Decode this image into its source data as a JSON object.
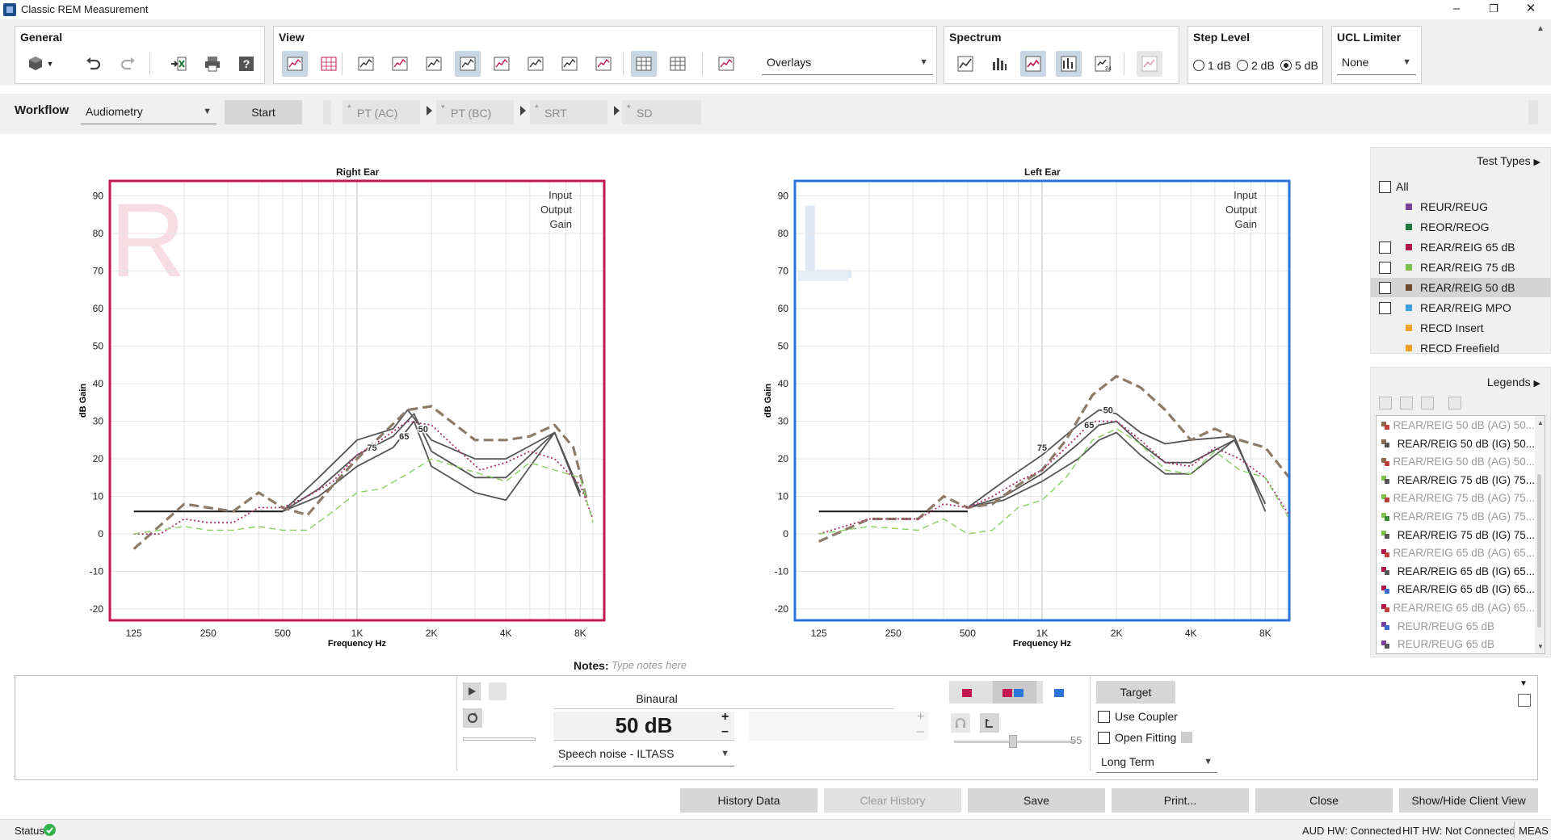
{
  "window": {
    "title": "Classic REM Measurement",
    "minimize": "–",
    "maximize": "❐",
    "close": "✕"
  },
  "ribbon": {
    "general": {
      "title": "General"
    },
    "view": {
      "title": "View",
      "overlay_select": "Overlays"
    },
    "spectrum": {
      "title": "Spectrum"
    },
    "step_level": {
      "title": "Step Level",
      "options": [
        "1 dB",
        "2 dB",
        "5 dB"
      ],
      "selected": "5 dB"
    },
    "ucl_limiter": {
      "title": "UCL Limiter",
      "value": "None"
    }
  },
  "workflow": {
    "label": "Workflow",
    "select": "Audiometry",
    "start": "Start",
    "steps": [
      "PT (AC)",
      "PT (BC)",
      "SRT",
      "SD"
    ],
    "step_marker": "*"
  },
  "charts": {
    "right": {
      "title": "Right Ear",
      "watermark": "R",
      "border_color": "#c4174f"
    },
    "left": {
      "title": "Left Ear",
      "watermark": "L",
      "border_color": "#2a74d8"
    },
    "corner_labels": [
      "Input",
      "Output",
      "Gain"
    ],
    "ylabel": "dB Gain",
    "xlabel": "Frequency Hz",
    "y_ticks": [
      "90",
      "80",
      "70",
      "60",
      "50",
      "40",
      "30",
      "20",
      "10",
      "0",
      "-10",
      "-20"
    ],
    "x_ticks": [
      "125",
      "250",
      "500",
      "1K",
      "2K",
      "4K",
      "8K"
    ]
  },
  "chart_data": [
    {
      "type": "line",
      "title": "Right Ear",
      "xlabel": "Frequency Hz",
      "ylabel": "dB Gain",
      "x_scale": "log",
      "xlim": [
        100,
        10000
      ],
      "ylim": [
        -23,
        94
      ],
      "x_ticks": [
        125,
        250,
        500,
        1000,
        2000,
        4000,
        8000
      ],
      "curve_labels": [
        {
          "text": "50",
          "x": 1850,
          "y": 28
        },
        {
          "text": "65",
          "x": 1550,
          "y": 26
        },
        {
          "text": "75",
          "x": 1150,
          "y": 23
        }
      ],
      "series": [
        {
          "color": "#222222",
          "style": "solid",
          "x": [
            125,
            160,
            250,
            350,
            500
          ],
          "y": [
            6,
            6,
            6,
            6,
            6
          ]
        },
        {
          "color": "#555555",
          "style": "solid",
          "x": [
            500,
            700,
            1000,
            1400,
            1600,
            2000,
            3000,
            4000,
            6300,
            8000
          ],
          "y": [
            6,
            15,
            25,
            28,
            33,
            25,
            20,
            20,
            27,
            11
          ]
        },
        {
          "color": "#555555",
          "style": "solid",
          "x": [
            500,
            700,
            1000,
            1400,
            1700,
            2000,
            3000,
            4000,
            6300,
            8000
          ],
          "y": [
            6,
            12,
            21,
            26,
            32,
            22,
            15,
            15,
            27,
            10
          ]
        },
        {
          "color": "#555555",
          "style": "solid",
          "x": [
            500,
            700,
            1000,
            1400,
            1700,
            2000,
            3000,
            4000,
            6300,
            8000
          ],
          "y": [
            6,
            10,
            18,
            23,
            30,
            18,
            11,
            9,
            27,
            11
          ]
        },
        {
          "color": "#8c7b68",
          "style": "dashed",
          "x": [
            125,
            200,
            315,
            400,
            500,
            630,
            800,
            1000,
            1600,
            2000,
            3000,
            4000,
            5000,
            6300,
            7500,
            8500
          ],
          "y": [
            -4,
            8,
            6,
            11,
            7,
            5,
            13,
            20,
            33,
            34,
            25,
            25,
            26,
            29,
            23,
            9
          ]
        },
        {
          "color": "#a8306e",
          "style": "dotted",
          "x": [
            125,
            160,
            200,
            250,
            315,
            400,
            500,
            630,
            800,
            1000,
            1250,
            1600,
            2000,
            2500,
            3150,
            4000,
            5000,
            6300,
            8000,
            9000
          ],
          "y": [
            0,
            0,
            4,
            3,
            3,
            7,
            7,
            10,
            14,
            21,
            25,
            30,
            29,
            23,
            17,
            19,
            22,
            20,
            13,
            4
          ]
        },
        {
          "color": "#8acd62",
          "style": "dashed",
          "x": [
            125,
            200,
            250,
            315,
            400,
            500,
            630,
            800,
            1000,
            1250,
            1600,
            2000,
            2500,
            3150,
            4000,
            5000,
            6300,
            8000,
            9000
          ],
          "y": [
            0,
            2,
            1,
            1,
            2,
            1,
            1,
            6,
            11,
            12,
            16,
            20,
            18,
            16,
            14,
            19,
            17,
            15,
            3
          ]
        }
      ]
    },
    {
      "type": "line",
      "title": "Left Ear",
      "xlabel": "Frequency Hz",
      "ylabel": "dB Gain",
      "x_scale": "log",
      "xlim": [
        100,
        10000
      ],
      "ylim": [
        -23,
        94
      ],
      "x_ticks": [
        125,
        250,
        500,
        1000,
        2000,
        4000,
        8000
      ],
      "curve_labels": [
        {
          "text": "50",
          "x": 1850,
          "y": 33
        },
        {
          "text": "65",
          "x": 1550,
          "y": 29
        },
        {
          "text": "75",
          "x": 1000,
          "y": 23
        }
      ],
      "series": [
        {
          "color": "#222222",
          "style": "solid",
          "x": [
            125,
            200,
            315,
            400,
            500
          ],
          "y": [
            6,
            6,
            6,
            6,
            6
          ]
        },
        {
          "color": "#555555",
          "style": "solid",
          "x": [
            500,
            700,
            1000,
            1400,
            1700,
            2000,
            2500,
            3150,
            4000,
            6000,
            8000
          ],
          "y": [
            7,
            14,
            21,
            29,
            33,
            32,
            27,
            24,
            25,
            26,
            6
          ]
        },
        {
          "color": "#555555",
          "style": "solid",
          "x": [
            500,
            700,
            1000,
            1400,
            1700,
            2000,
            2500,
            3150,
            4000,
            6000,
            8000
          ],
          "y": [
            7,
            10,
            16,
            24,
            29,
            30,
            24,
            19,
            19,
            25,
            8
          ]
        },
        {
          "color": "#555555",
          "style": "solid",
          "x": [
            500,
            700,
            1000,
            1400,
            1700,
            2000,
            2500,
            3150,
            4000,
            6000,
            8000
          ],
          "y": [
            7,
            9,
            14,
            20,
            25,
            27,
            21,
            16,
            16,
            25,
            8
          ]
        },
        {
          "color": "#8c7b68",
          "style": "dashed",
          "x": [
            125,
            200,
            315,
            400,
            500,
            630,
            800,
            1000,
            1250,
            1600,
            2000,
            2500,
            3150,
            4000,
            5000,
            6300,
            8000,
            10000
          ],
          "y": [
            -2,
            4,
            4,
            10,
            7,
            8,
            13,
            17,
            25,
            37,
            42,
            39,
            33,
            25,
            28,
            25,
            23,
            15
          ]
        },
        {
          "color": "#a8306e",
          "style": "dotted",
          "x": [
            125,
            200,
            250,
            315,
            400,
            500,
            630,
            800,
            1000,
            1250,
            1600,
            2000,
            2500,
            3150,
            4000,
            5000,
            6300,
            8000,
            10000
          ],
          "y": [
            0,
            4,
            4,
            4,
            8,
            7,
            10,
            14,
            17,
            23,
            30,
            30,
            25,
            19,
            18,
            23,
            20,
            15,
            5
          ]
        },
        {
          "color": "#8acd62",
          "style": "dashed",
          "x": [
            125,
            200,
            315,
            400,
            500,
            630,
            800,
            1000,
            1250,
            1600,
            2000,
            2500,
            3150,
            4000,
            5000,
            6300,
            8000,
            10000
          ],
          "y": [
            0,
            2,
            1,
            4,
            0,
            1,
            7,
            9,
            15,
            25,
            28,
            24,
            17,
            16,
            22,
            17,
            15,
            4
          ]
        }
      ]
    }
  ],
  "test_types": {
    "title": "Test Types",
    "items": [
      {
        "label": "All",
        "checkbox": true,
        "color": ""
      },
      {
        "label": "REUR/REUG",
        "checkbox": false,
        "color": "#7b3fa0"
      },
      {
        "label": "REOR/REOG",
        "checkbox": false,
        "color": "#1e7a3a"
      },
      {
        "label": "REAR/REIG 65 dB",
        "checkbox": true,
        "color": "#b0174f"
      },
      {
        "label": "REAR/REIG 75 dB",
        "checkbox": true,
        "color": "#7cc24a"
      },
      {
        "label": "REAR/REIG 50 dB",
        "checkbox": true,
        "color": "#6b4a2e"
      },
      {
        "label": "REAR/REIG MPO",
        "checkbox": true,
        "color": "#3aa0e0"
      },
      {
        "label": "RECD Insert",
        "checkbox": false,
        "color": "#f0a020"
      },
      {
        "label": "RECD Freefield",
        "checkbox": false,
        "color": "#f0a020"
      }
    ]
  },
  "legends": {
    "title": "Legends",
    "items": [
      {
        "label": "REAR/REIG 50 dB (AG) 50...",
        "dim": true,
        "c": "#8c6a50",
        "c2": "#c04040"
      },
      {
        "label": "REAR/REIG 50 dB (IG) 50...",
        "dim": false,
        "c": "#8c6a50",
        "c2": "#555555"
      },
      {
        "label": "REAR/REIG 50 dB (AG) 50...",
        "dim": true,
        "c": "#8c6a50",
        "c2": "#c04040"
      },
      {
        "label": "REAR/REIG 75 dB (IG) 75...",
        "dim": false,
        "c": "#7cc24a",
        "c2": "#555555"
      },
      {
        "label": "REAR/REIG 75 dB (AG) 75...",
        "dim": true,
        "c": "#7cc24a",
        "c2": "#c04040"
      },
      {
        "label": "REAR/REIG 75 dB (AG) 75...",
        "dim": true,
        "c": "#7cc24a",
        "c2": "#3a8a3a"
      },
      {
        "label": "REAR/REIG 75 dB (IG) 75...",
        "dim": false,
        "c": "#7cc24a",
        "c2": "#555555"
      },
      {
        "label": "REAR/REIG 65 dB (AG) 65...",
        "dim": true,
        "c": "#b0174f",
        "c2": "#c04040"
      },
      {
        "label": "REAR/REIG 65 dB (IG) 65...",
        "dim": false,
        "c": "#b0174f",
        "c2": "#555555"
      },
      {
        "label": "REAR/REIG 65 dB (IG) 65...",
        "dim": false,
        "c": "#b0174f",
        "c2": "#3a6ad0"
      },
      {
        "label": "REAR/REIG 65 dB (AG) 65...",
        "dim": true,
        "c": "#b0174f",
        "c2": "#c04040"
      },
      {
        "label": "REUR/REUG 65 dB",
        "dim": true,
        "c": "#7b3fa0",
        "c2": "#3a6ad0"
      },
      {
        "label": "REUR/REUG 65 dB",
        "dim": true,
        "c": "#7b3fa0",
        "c2": "#555555"
      }
    ]
  },
  "notes": {
    "label": "Notes:",
    "placeholder": "Type notes here"
  },
  "controls": {
    "mode": "Binaural",
    "level": "50 dB",
    "plus": "+",
    "minus": "–",
    "signal": "Speech noise - ILTASS",
    "slider_value": "55",
    "target": "Target",
    "use_coupler": "Use Coupler",
    "open_fitting": "Open Fitting",
    "averaging": "Long Term"
  },
  "actions": {
    "history": "History Data",
    "clear_history": "Clear History",
    "save": "Save",
    "print": "Print...",
    "close": "Close",
    "client_view": "Show/Hide Client View"
  },
  "status": {
    "label": "Status",
    "aud_hw": "AUD HW: Connected",
    "hit_hw": "HIT HW: Not Connected",
    "meas": "MEAS"
  },
  "colors": {
    "ok": "#2fb34a",
    "right_ear": "#c4174f",
    "left_ear": "#2a74d8"
  }
}
